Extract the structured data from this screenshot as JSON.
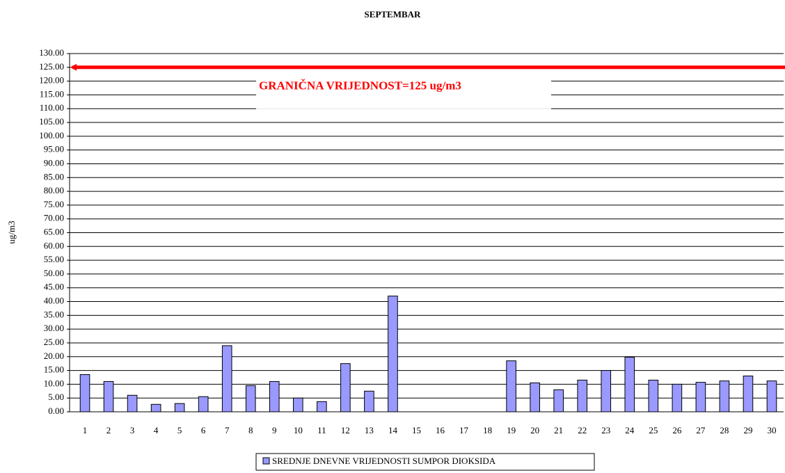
{
  "chart_data": {
    "type": "bar",
    "title": "SEPTEMBAR",
    "y_label": "ug/m3",
    "categories": [
      "1",
      "2",
      "3",
      "4",
      "5",
      "6",
      "7",
      "8",
      "9",
      "10",
      "11",
      "12",
      "13",
      "14",
      "15",
      "16",
      "17",
      "18",
      "19",
      "20",
      "21",
      "22",
      "23",
      "24",
      "25",
      "26",
      "27",
      "28",
      "29",
      "30"
    ],
    "series": [
      {
        "name": "SREDNJE DNEVNE VRIJEDNOSTI SUMPOR DIOKSIDA",
        "color": "#9999ff",
        "values": [
          13.5,
          11,
          6,
          2.7,
          3,
          5.5,
          24,
          9.5,
          11,
          5,
          3.7,
          17.5,
          7.5,
          42,
          null,
          null,
          null,
          null,
          18.5,
          10.5,
          8,
          11.5,
          15,
          19.8,
          11.5,
          10,
          10.7,
          11.2,
          13,
          11.2
        ]
      }
    ],
    "ylim": [
      0,
      130
    ],
    "yticks": [
      {
        "value": 0,
        "label": "0.00"
      },
      {
        "value": 5,
        "label": "5.00"
      },
      {
        "value": 10,
        "label": "10.00"
      },
      {
        "value": 15,
        "label": "15.00"
      },
      {
        "value": 20,
        "label": "20.00"
      },
      {
        "value": 25,
        "label": "25.00"
      },
      {
        "value": 30,
        "label": "30.00"
      },
      {
        "value": 35,
        "label": "35.00"
      },
      {
        "value": 40,
        "label": "40.00"
      },
      {
        "value": 45,
        "label": "45.00"
      },
      {
        "value": 50,
        "label": "50.00"
      },
      {
        "value": 55,
        "label": "55.00"
      },
      {
        "value": 60,
        "label": "60.00"
      },
      {
        "value": 65,
        "label": "65.00"
      },
      {
        "value": 70,
        "label": "70.00"
      },
      {
        "value": 75,
        "label": "75.00"
      },
      {
        "value": 80,
        "label": "80.00"
      },
      {
        "value": 85,
        "label": "85.00"
      },
      {
        "value": 90,
        "label": "90.00"
      },
      {
        "value": 95,
        "label": "95.00"
      },
      {
        "value": 100,
        "label": "100.00"
      },
      {
        "value": 105,
        "label": "105.00"
      },
      {
        "value": 110,
        "label": "110.00"
      },
      {
        "value": 115,
        "label": "115.00"
      },
      {
        "value": 120,
        "label": "120.00"
      },
      {
        "value": 125,
        "label": "125.00"
      },
      {
        "value": 130,
        "label": "130.00"
      }
    ],
    "grid": true,
    "reference_line": {
      "value": 125,
      "label": "GRANIČNA VRIJEDNOST=125 ug/m3",
      "color": "#ff0000"
    }
  }
}
